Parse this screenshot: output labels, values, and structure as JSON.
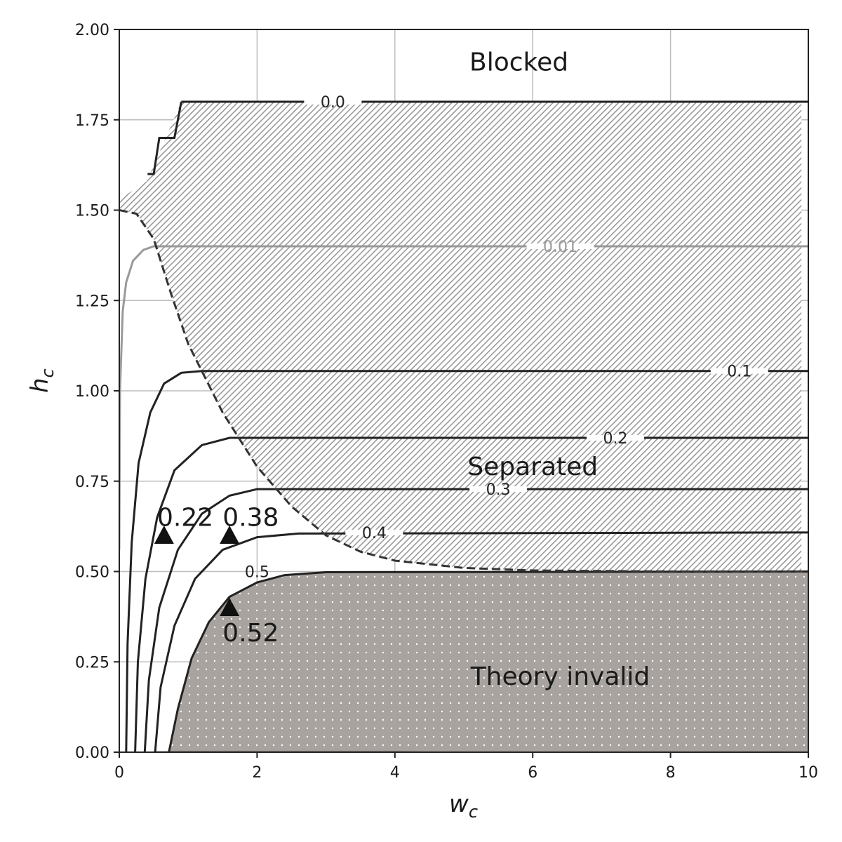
{
  "chart_data": {
    "type": "line",
    "xlabel": "w",
    "xlabel_sub": "c",
    "ylabel": "h",
    "ylabel_sub": "c",
    "xlim": [
      0,
      10
    ],
    "ylim": [
      0,
      2
    ],
    "grid": true,
    "x_ticks": [
      0,
      2,
      4,
      6,
      8,
      10
    ],
    "y_ticks": [
      0.0,
      0.25,
      0.5,
      0.75,
      1.0,
      1.25,
      1.5,
      1.75,
      2.0
    ],
    "x_tick_labels": [
      "0",
      "2",
      "4",
      "6",
      "8",
      "10"
    ],
    "y_tick_labels": [
      "0.00",
      "0.25",
      "0.50",
      "0.75",
      "1.00",
      "1.25",
      "1.50",
      "1.75",
      "2.00"
    ],
    "regions": [
      {
        "label": "Blocked",
        "label_at": [
          5.8,
          1.91
        ]
      },
      {
        "label": "Separated",
        "label_at": [
          6.0,
          0.79
        ],
        "pattern": "hatched",
        "color": "#9a9a9a"
      },
      {
        "label": "Theory invalid",
        "label_at": [
          6.4,
          0.21
        ],
        "pattern": "dotted",
        "color": "#a8a39f"
      }
    ],
    "boundaries": {
      "separated_boundary": {
        "style": "dashed",
        "color": "#333333",
        "points": [
          [
            0.0,
            1.5
          ],
          [
            0.25,
            1.49
          ],
          [
            0.5,
            1.42
          ],
          [
            0.75,
            1.27
          ],
          [
            1.0,
            1.13
          ],
          [
            1.5,
            0.94
          ],
          [
            2.0,
            0.79
          ],
          [
            2.5,
            0.68
          ],
          [
            3.0,
            0.6
          ],
          [
            3.5,
            0.555
          ],
          [
            4.0,
            0.53
          ],
          [
            5.0,
            0.51
          ],
          [
            6.0,
            0.503
          ],
          [
            8.0,
            0.5
          ],
          [
            10.0,
            0.5
          ]
        ]
      },
      "blocked_step": {
        "style": "solid",
        "color": "#222222",
        "points": [
          [
            0.41,
            1.6
          ],
          [
            0.5,
            1.6
          ],
          [
            0.58,
            1.7
          ],
          [
            0.8,
            1.7
          ],
          [
            0.9,
            1.8
          ]
        ]
      },
      "invalid_edge": {
        "style": "solid",
        "color": "#1a1a1a",
        "points": [
          [
            0.5,
            0.0
          ],
          [
            2.0,
            0.0
          ],
          [
            4.0,
            0.0
          ],
          [
            6.0,
            -0.002
          ],
          [
            8.0,
            -0.005
          ],
          [
            10.0,
            -0.005
          ]
        ]
      }
    },
    "contours": [
      {
        "level": "0.0",
        "color": "#222222",
        "width": 3,
        "points": [
          [
            0.9,
            1.8
          ],
          [
            10.0,
            1.8
          ]
        ],
        "label_at": [
          3.1,
          1.8
        ]
      },
      {
        "level": "0.01",
        "color": "#999999",
        "width": 3,
        "points": [
          [
            0.0,
            0.56
          ],
          [
            0.01,
            1.0
          ],
          [
            0.05,
            1.22
          ],
          [
            0.1,
            1.3
          ],
          [
            0.2,
            1.36
          ],
          [
            0.35,
            1.39
          ],
          [
            0.5,
            1.4
          ],
          [
            10.0,
            1.4
          ]
        ],
        "label_at": [
          6.4,
          1.4
        ]
      },
      {
        "level": "0.1",
        "color": "#222222",
        "width": 3,
        "points": [
          [
            0.1,
            0.0
          ],
          [
            0.12,
            0.3
          ],
          [
            0.18,
            0.58
          ],
          [
            0.28,
            0.8
          ],
          [
            0.45,
            0.94
          ],
          [
            0.65,
            1.02
          ],
          [
            0.9,
            1.05
          ],
          [
            1.2,
            1.055
          ],
          [
            10.0,
            1.055
          ]
        ],
        "label_at": [
          9.0,
          1.055
        ]
      },
      {
        "level": "0.2",
        "color": "#222222",
        "width": 3,
        "points": [
          [
            0.23,
            0.0
          ],
          [
            0.27,
            0.25
          ],
          [
            0.38,
            0.48
          ],
          [
            0.55,
            0.65
          ],
          [
            0.8,
            0.78
          ],
          [
            1.2,
            0.85
          ],
          [
            1.6,
            0.87
          ],
          [
            10.0,
            0.87
          ]
        ],
        "label_at": [
          7.2,
          0.87
        ]
      },
      {
        "level": "0.3",
        "color": "#222222",
        "width": 3,
        "points": [
          [
            0.37,
            0.0
          ],
          [
            0.43,
            0.2
          ],
          [
            0.58,
            0.4
          ],
          [
            0.85,
            0.56
          ],
          [
            1.2,
            0.66
          ],
          [
            1.6,
            0.71
          ],
          [
            2.0,
            0.728
          ],
          [
            10.0,
            0.728
          ]
        ],
        "label_at": [
          5.5,
          0.728
        ]
      },
      {
        "level": "0.4",
        "color": "#222222",
        "width": 3,
        "points": [
          [
            0.52,
            0.0
          ],
          [
            0.6,
            0.18
          ],
          [
            0.8,
            0.35
          ],
          [
            1.1,
            0.48
          ],
          [
            1.5,
            0.56
          ],
          [
            2.0,
            0.595
          ],
          [
            2.6,
            0.605
          ],
          [
            10.0,
            0.608
          ]
        ],
        "label_at": [
          3.7,
          0.608
        ]
      },
      {
        "level": "0.5",
        "color": "#222222",
        "width": 3,
        "points": [
          [
            0.72,
            0.0
          ],
          [
            0.85,
            0.12
          ],
          [
            1.05,
            0.26
          ],
          [
            1.3,
            0.36
          ],
          [
            1.6,
            0.43
          ],
          [
            2.0,
            0.47
          ],
          [
            2.4,
            0.49
          ],
          [
            3.0,
            0.498
          ],
          [
            10.0,
            0.5
          ]
        ],
        "label_at": [
          2.0,
          0.5
        ]
      }
    ],
    "markers": [
      {
        "label": "0.22",
        "x": 0.65,
        "y": 0.6,
        "label_at": [
          0.55,
          0.65
        ]
      },
      {
        "label": "0.38",
        "x": 1.6,
        "y": 0.6,
        "label_at": [
          1.5,
          0.65
        ]
      },
      {
        "label": "0.52",
        "x": 1.6,
        "y": 0.4,
        "label_at": [
          1.5,
          0.33
        ]
      }
    ],
    "colors": {
      "axis": "#222222",
      "grid": "#bdbdbd",
      "text": "#1a1a1a"
    }
  }
}
